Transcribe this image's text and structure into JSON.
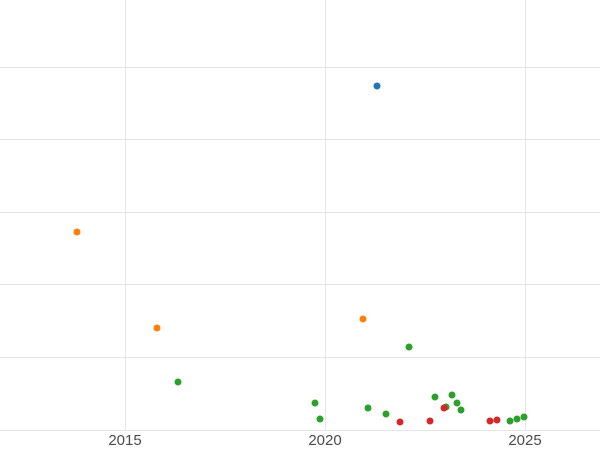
{
  "chart_data": {
    "type": "scatter",
    "title": "",
    "xlabel": "",
    "ylabel": "",
    "xlim": [
      2011.875,
      2026.875
    ],
    "ylim": [
      0,
      5.93
    ],
    "x_ticks": [
      2015,
      2020,
      2025
    ],
    "x_tick_labels": [
      "2015",
      "2020",
      "2025"
    ],
    "y_gridlines": [
      0,
      1,
      2,
      3,
      4,
      5
    ],
    "grid": true,
    "legend_position": "none",
    "series": [
      {
        "name": "blue-series",
        "color": "#1f77b4",
        "points": [
          {
            "x": 2021.3,
            "y": 4.74
          }
        ]
      },
      {
        "name": "orange-series",
        "color": "#ff7f0e",
        "points": [
          {
            "x": 2013.8,
            "y": 2.73
          },
          {
            "x": 2015.8,
            "y": 1.41
          },
          {
            "x": 2020.95,
            "y": 1.53
          }
        ]
      },
      {
        "name": "green-series",
        "color": "#2ca02c",
        "points": [
          {
            "x": 2016.33,
            "y": 0.66
          },
          {
            "x": 2022.1,
            "y": 1.14
          },
          {
            "x": 2019.75,
            "y": 0.37
          },
          {
            "x": 2019.88,
            "y": 0.15
          },
          {
            "x": 2021.08,
            "y": 0.3
          },
          {
            "x": 2021.53,
            "y": 0.22
          },
          {
            "x": 2022.75,
            "y": 0.46
          },
          {
            "x": 2023.03,
            "y": 0.32
          },
          {
            "x": 2023.18,
            "y": 0.48
          },
          {
            "x": 2023.3,
            "y": 0.37
          },
          {
            "x": 2023.4,
            "y": 0.28
          },
          {
            "x": 2024.63,
            "y": 0.12
          },
          {
            "x": 2024.8,
            "y": 0.15
          },
          {
            "x": 2024.98,
            "y": 0.18
          }
        ]
      },
      {
        "name": "red-series",
        "color": "#d62728",
        "points": [
          {
            "x": 2021.88,
            "y": 0.11
          },
          {
            "x": 2022.63,
            "y": 0.12
          },
          {
            "x": 2022.98,
            "y": 0.3
          },
          {
            "x": 2024.13,
            "y": 0.12
          },
          {
            "x": 2024.3,
            "y": 0.14
          }
        ]
      }
    ]
  },
  "style": {
    "grid_color": "#e5e5e5",
    "tick_label_color": "#4c4c4c",
    "background": "#ffffff"
  }
}
